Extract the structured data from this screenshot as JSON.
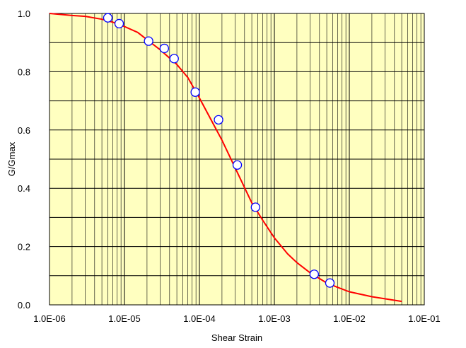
{
  "chart_data": {
    "type": "scatter",
    "title": "",
    "xlabel": "Shear  Strain",
    "ylabel": "G/Gmax",
    "xscale": "log",
    "xlim": [
      1e-06,
      0.1
    ],
    "ylim": [
      0,
      1
    ],
    "grid": true,
    "legend": "none",
    "background_color": "#FFFFC0",
    "x_tick_labels": [
      "1.0E-06",
      "1.0E-05",
      "1.0E-04",
      "1.0E-03",
      "1.0E-02",
      "1.0E-01"
    ],
    "y_tick_labels": [
      "0.0",
      "0.2",
      "0.4",
      "0.6",
      "0.8",
      "1.0"
    ],
    "series": [
      {
        "kind": "line",
        "color": "#FF0000",
        "x": [
          1e-06,
          2e-06,
          3e-06,
          5e-06,
          7e-06,
          1e-05,
          1.5e-05,
          2e-05,
          3e-05,
          5e-05,
          7e-05,
          0.0001,
          0.00015,
          0.0002,
          0.0003,
          0.0005,
          0.0007,
          0.001,
          0.0015,
          0.002,
          0.003,
          0.005,
          0.007,
          0.01,
          0.02,
          0.05
        ],
        "y": [
          1.0,
          0.993,
          0.99,
          0.98,
          0.97,
          0.955,
          0.935,
          0.91,
          0.875,
          0.825,
          0.78,
          0.71,
          0.625,
          0.565,
          0.47,
          0.35,
          0.29,
          0.23,
          0.175,
          0.145,
          0.11,
          0.075,
          0.06,
          0.045,
          0.028,
          0.012
        ]
      },
      {
        "kind": "markers",
        "color": "#0000FF",
        "x": [
          6e-06,
          8.5e-06,
          2.1e-05,
          3.4e-05,
          4.6e-05,
          8.8e-05,
          0.00018,
          0.00032,
          0.00056,
          0.0034,
          0.0055
        ],
        "y": [
          0.985,
          0.965,
          0.905,
          0.88,
          0.845,
          0.73,
          0.635,
          0.48,
          0.335,
          0.105,
          0.075
        ]
      }
    ]
  }
}
